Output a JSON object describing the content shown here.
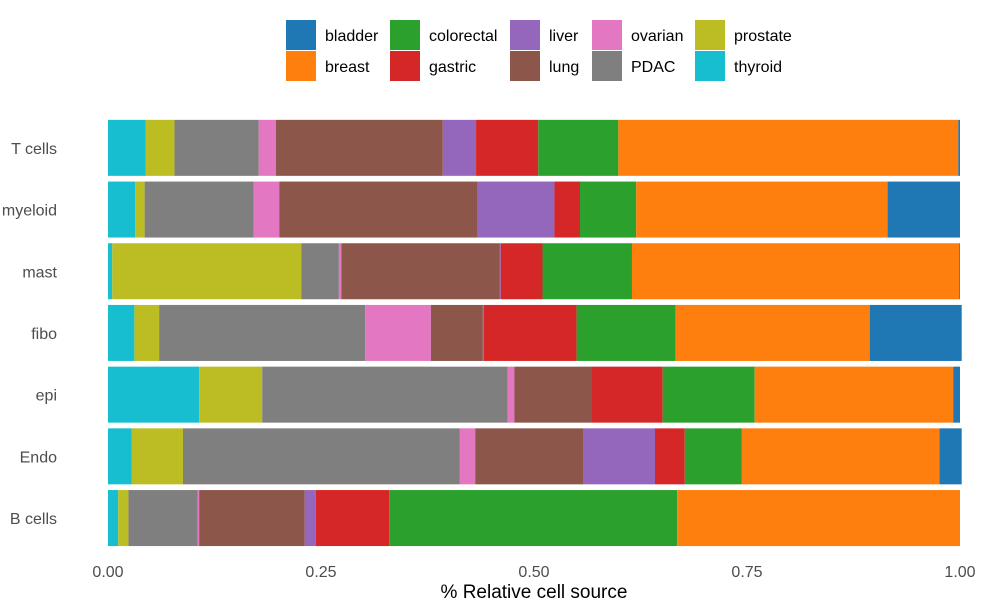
{
  "chart_data": {
    "type": "bar",
    "orientation": "horizontal",
    "stacked": true,
    "title": "",
    "xlabel": "% Relative cell source",
    "ylabel": "",
    "xlim": [
      0,
      1
    ],
    "x_ticks": [
      0,
      0.25,
      0.5,
      0.75,
      1
    ],
    "x_tick_labels": [
      "0.00",
      "0.25",
      "0.50",
      "0.75",
      "1.00"
    ],
    "grid": false,
    "legend_position": "top",
    "categories": [
      "T cells",
      "myeloid",
      "mast",
      "fibo",
      "epi",
      "Endo",
      "B cells"
    ],
    "stack_order": [
      "thyroid",
      "prostate",
      "PDAC",
      "ovarian",
      "lung",
      "liver",
      "gastric",
      "colorectal",
      "breast",
      "bladder"
    ],
    "legend_order": [
      "bladder",
      "breast",
      "colorectal",
      "gastric",
      "liver",
      "lung",
      "ovarian",
      "PDAC",
      "prostate",
      "thyroid"
    ],
    "colors": {
      "bladder": "#1f77b4",
      "breast": "#ff7f0e",
      "colorectal": "#2ca02c",
      "gastric": "#d62728",
      "liver": "#9467bd",
      "lung": "#8c564b",
      "ovarian": "#e377c2",
      "PDAC": "#7f7f7f",
      "prostate": "#bcbd22",
      "thyroid": "#17becf"
    },
    "series": [
      {
        "name": "thyroid",
        "values": [
          0.044,
          0.032,
          0.005,
          0.031,
          0.107,
          0.028,
          0.012
        ]
      },
      {
        "name": "prostate",
        "values": [
          0.034,
          0.011,
          0.222,
          0.029,
          0.074,
          0.06,
          0.012
        ]
      },
      {
        "name": "PDAC",
        "values": [
          0.099,
          0.128,
          0.044,
          0.242,
          0.288,
          0.325,
          0.081
        ]
      },
      {
        "name": "ovarian",
        "values": [
          0.02,
          0.03,
          0.003,
          0.077,
          0.008,
          0.018,
          0.002
        ]
      },
      {
        "name": "lung",
        "values": [
          0.196,
          0.233,
          0.186,
          0.061,
          0.09,
          0.127,
          0.124
        ]
      },
      {
        "name": "liver",
        "values": [
          0.039,
          0.09,
          0.001,
          0.001,
          0.0,
          0.084,
          0.013
        ]
      },
      {
        "name": "gastric",
        "values": [
          0.073,
          0.03,
          0.049,
          0.109,
          0.084,
          0.035,
          0.086
        ]
      },
      {
        "name": "colorectal",
        "values": [
          0.094,
          0.066,
          0.105,
          0.116,
          0.108,
          0.067,
          0.338
        ]
      },
      {
        "name": "breast",
        "values": [
          0.399,
          0.295,
          0.384,
          0.228,
          0.233,
          0.232,
          0.332
        ]
      },
      {
        "name": "bladder",
        "values": [
          0.002,
          0.085,
          0.001,
          0.108,
          0.008,
          0.026,
          0.0
        ]
      }
    ]
  }
}
